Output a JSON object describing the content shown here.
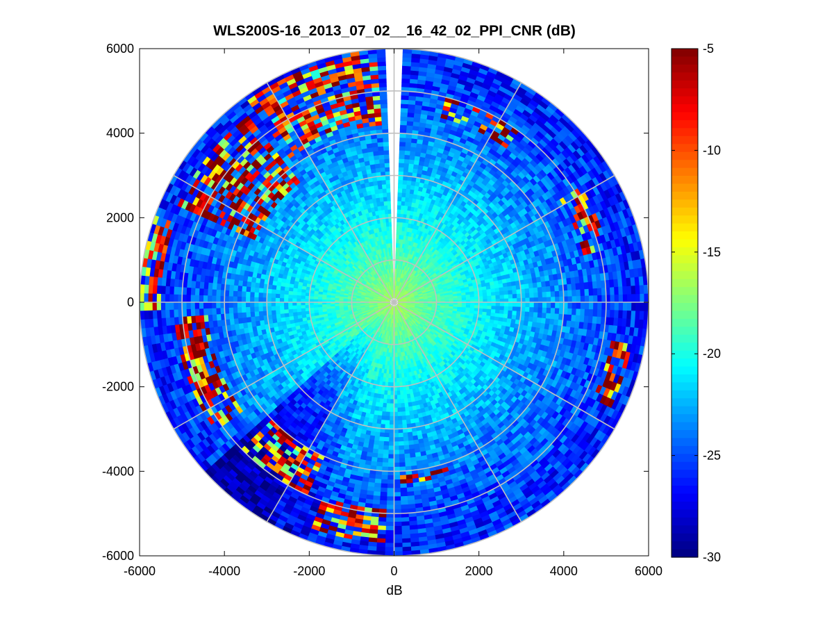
{
  "chart_data": {
    "type": "heatmap",
    "subtype": "polar-ppi",
    "title": "WLS200S-16_2013_07_02__16_42_02_PPI_CNR (dB)",
    "xlabel": "dB",
    "ylabel": "",
    "xlim": [
      -6000,
      6000
    ],
    "ylim": [
      -6000,
      6000
    ],
    "x_ticks": [
      -6000,
      -4000,
      -2000,
      0,
      2000,
      4000,
      6000
    ],
    "y_ticks": [
      -6000,
      -4000,
      -2000,
      0,
      2000,
      4000,
      6000
    ],
    "x_tick_labels": [
      "-6000",
      "-4000",
      "-2000",
      "0",
      "2000",
      "4000",
      "6000"
    ],
    "y_tick_labels": [
      "-6000",
      "-4000",
      "-2000",
      "0",
      "2000",
      "4000",
      "6000"
    ],
    "max_range": 6000,
    "range_rings": [
      1000,
      2000,
      3000,
      4000,
      5000,
      6000
    ],
    "spoke_angles_deg": [
      0,
      30,
      60,
      90,
      120,
      150,
      180,
      210,
      240,
      270,
      300,
      330
    ],
    "grid": true,
    "missing_sector_deg": [
      88,
      92
    ],
    "colormap": "jet",
    "colorbar": {
      "min": -30,
      "max": -5,
      "ticks": [
        -5,
        -10,
        -15,
        -20,
        -25,
        -30
      ],
      "tick_labels": [
        "-5",
        "-10",
        "-15",
        "-20",
        "-25",
        "-30"
      ],
      "location": "right"
    },
    "value_profile": {
      "near_range_value": -16,
      "far_range_value": -26,
      "notes_units": "dB"
    },
    "high_return_arcs": [
      {
        "angle_deg": [
          95,
          125
        ],
        "range": [
          4200,
          5900
        ],
        "value": -8
      },
      {
        "angle_deg": [
          128,
          155
        ],
        "range": [
          3600,
          5600
        ],
        "value": -6
      },
      {
        "angle_deg": [
          160,
          182
        ],
        "range": [
          5500,
          6000
        ],
        "value": -7
      },
      {
        "angle_deg": [
          185,
          215
        ],
        "range": [
          4400,
          5200
        ],
        "value": -6
      },
      {
        "angle_deg": [
          225,
          245
        ],
        "range": [
          4000,
          5000
        ],
        "value": -8
      },
      {
        "angle_deg": [
          250,
          268
        ],
        "range": [
          4900,
          5700
        ],
        "value": -6
      },
      {
        "angle_deg": [
          272,
          290
        ],
        "range": [
          4100,
          4300
        ],
        "value": -5
      },
      {
        "angle_deg": [
          335,
          350
        ],
        "range": [
          5200,
          5700
        ],
        "value": -7
      },
      {
        "angle_deg": [
          15,
          32
        ],
        "range": [
          4600,
          5200
        ],
        "value": -6
      },
      {
        "angle_deg": [
          55,
          75
        ],
        "range": [
          4500,
          5000
        ],
        "value": -6
      },
      {
        "angle_deg": [
          99,
          100
        ],
        "range": [
          5000,
          6000
        ],
        "value": -8
      }
    ]
  }
}
